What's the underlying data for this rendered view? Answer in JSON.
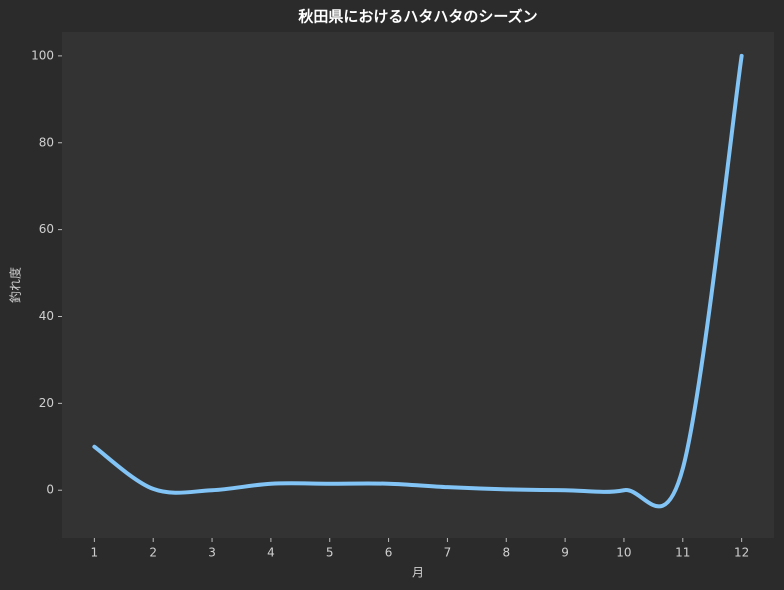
{
  "chart_data": {
    "type": "line",
    "title": "秋田県におけるハタハタのシーズン",
    "x_label": "月",
    "y_label": "釣れ度",
    "x": [
      1,
      2,
      3,
      4,
      5,
      6,
      7,
      8,
      9,
      10,
      11,
      12
    ],
    "series": [
      {
        "name": "釣れ度",
        "color": "#82c4f5",
        "values": [
          10,
          0.3,
          0,
          1.5,
          1.5,
          1.5,
          0.7,
          0.2,
          0,
          0,
          5,
          100
        ]
      }
    ],
    "xlim": [
      0.45,
      12.55
    ],
    "xticks": [
      1,
      2,
      3,
      4,
      5,
      6,
      7,
      8,
      9,
      10,
      11,
      12
    ],
    "ylim": [
      -11,
      105.5
    ],
    "yticks": [
      0,
      20,
      40,
      60,
      80,
      100
    ],
    "grid": false,
    "smooth": true
  }
}
